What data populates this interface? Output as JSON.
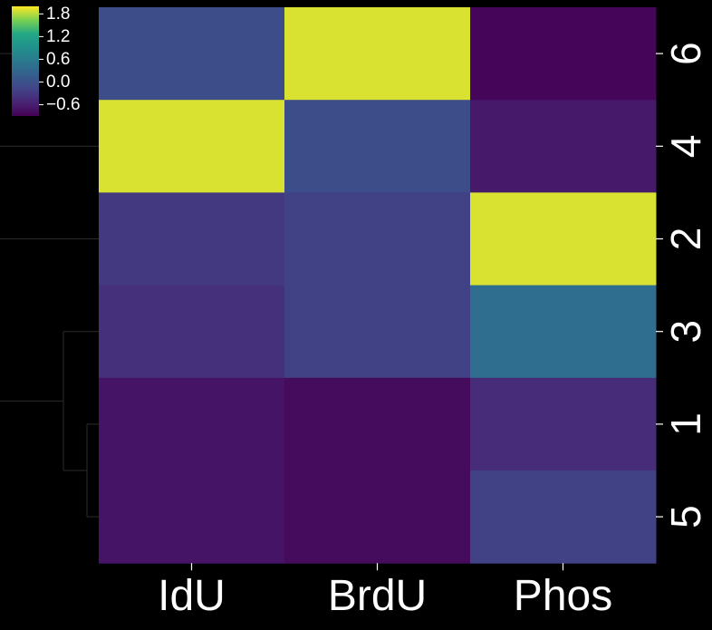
{
  "chart_data": {
    "type": "heatmap",
    "title": "",
    "colormap": "viridis",
    "background": "#000000",
    "columns": [
      "IdU",
      "BrdU",
      "Phos"
    ],
    "rows": [
      "6",
      "4",
      "2",
      "3",
      "1",
      "5"
    ],
    "values": [
      [
        -0.05,
        1.9,
        -0.85
      ],
      [
        1.9,
        -0.05,
        -0.65
      ],
      [
        -0.3,
        -0.2,
        1.9
      ],
      [
        -0.4,
        -0.2,
        0.4
      ],
      [
        -0.7,
        -0.8,
        -0.45
      ],
      [
        -0.7,
        -0.8,
        -0.2
      ]
    ],
    "colorbar": {
      "range": [
        -0.9,
        2.0
      ],
      "ticks": [
        1.8,
        1.2,
        0.6,
        0.0,
        -0.6
      ],
      "tick_labels": [
        "1.8",
        "1.2",
        "0.6",
        "0.0",
        "−0.6"
      ]
    },
    "dendrogram": {
      "side": "left",
      "note": "row clustering: (1,5) merge, then 3 joins"
    },
    "grid": false,
    "legend": "top-left"
  }
}
